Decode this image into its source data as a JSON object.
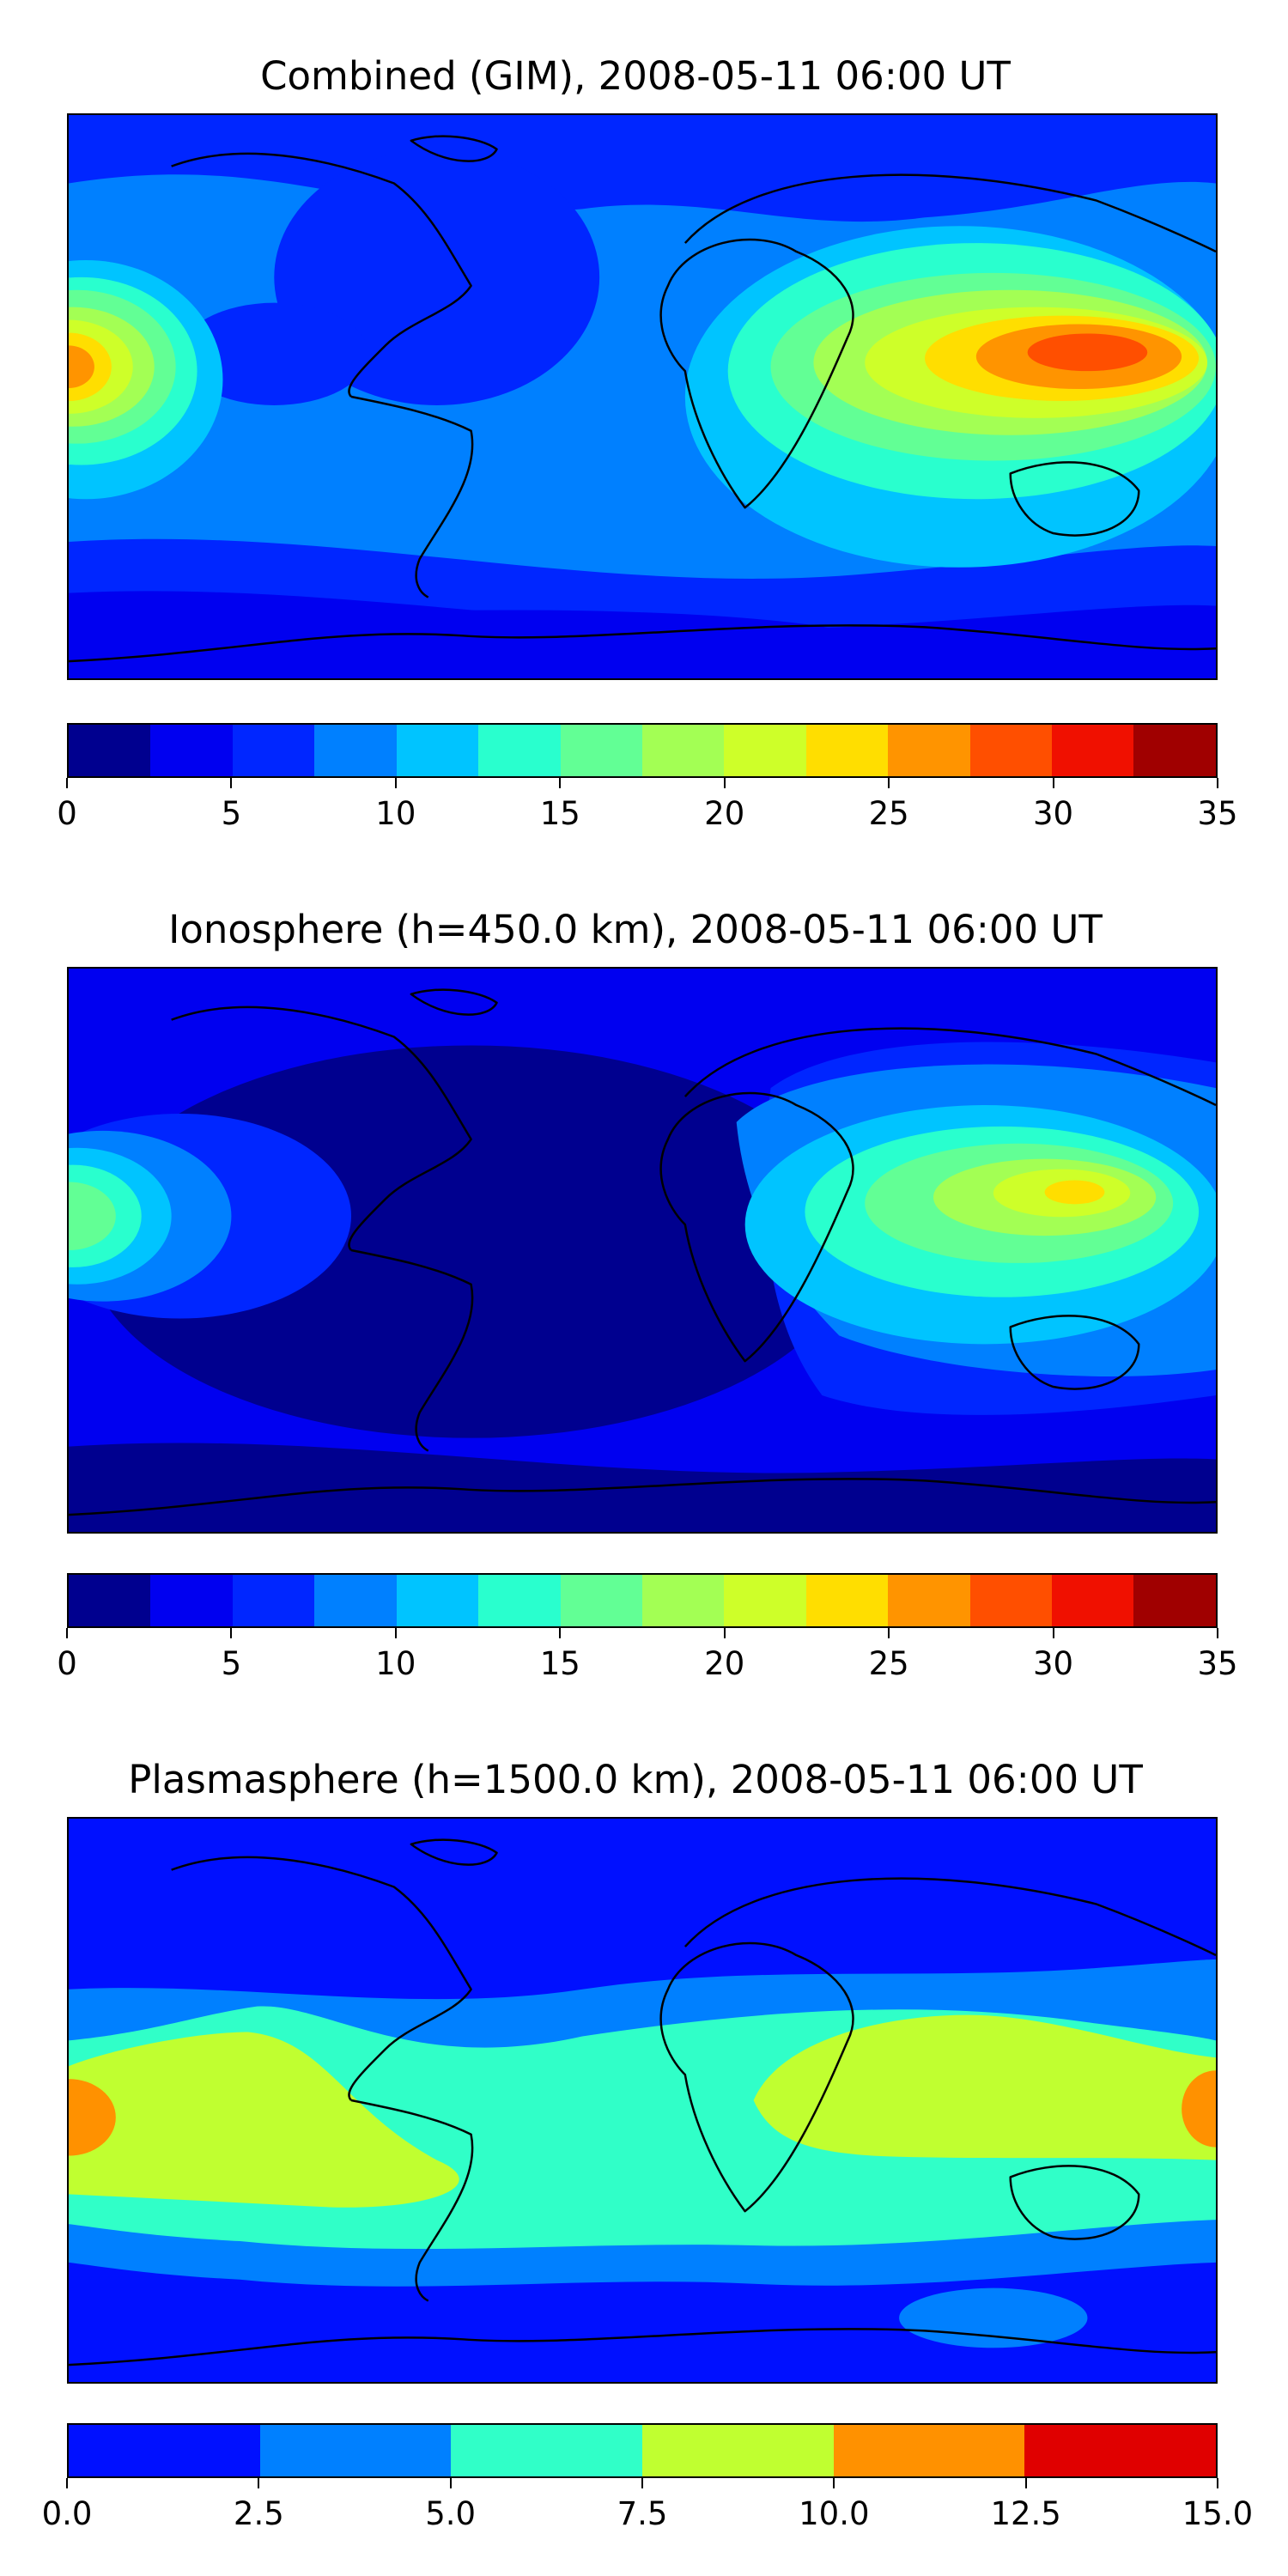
{
  "panels": [
    {
      "title": "Combined (GIM), 2008-05-11 06:00 UT",
      "colorbar": {
        "colors": [
          "#00008f",
          "#0000f0",
          "#0026ff",
          "#0080ff",
          "#00c4ff",
          "#29ffce",
          "#62ff95",
          "#a3ff54",
          "#ceff29",
          "#ffde00",
          "#ff9400",
          "#ff4f00",
          "#f01000",
          "#a00000"
        ],
        "ticks": [
          "0",
          "5",
          "10",
          "15",
          "20",
          "25",
          "30",
          "35"
        ]
      }
    },
    {
      "title": "Ionosphere  (h=450.0 km), 2008-05-11 06:00 UT",
      "colorbar": {
        "colors": [
          "#00008f",
          "#0000f0",
          "#0026ff",
          "#0080ff",
          "#00c4ff",
          "#29ffce",
          "#62ff95",
          "#a3ff54",
          "#ceff29",
          "#ffde00",
          "#ff9400",
          "#ff4f00",
          "#f01000",
          "#a00000"
        ],
        "ticks": [
          "0",
          "5",
          "10",
          "15",
          "20",
          "25",
          "30",
          "35"
        ]
      }
    },
    {
      "title": "Plasmasphere (h=1500.0 km), 2008-05-11 06:00 UT",
      "colorbar": {
        "colors": [
          "#0010ff",
          "#0080ff",
          "#30ffc8",
          "#c0ff30",
          "#ff9100",
          "#e00000"
        ],
        "ticks": [
          "0.0",
          "2.5",
          "5.0",
          "7.5",
          "10.0",
          "12.5",
          "15.0"
        ]
      }
    }
  ]
}
